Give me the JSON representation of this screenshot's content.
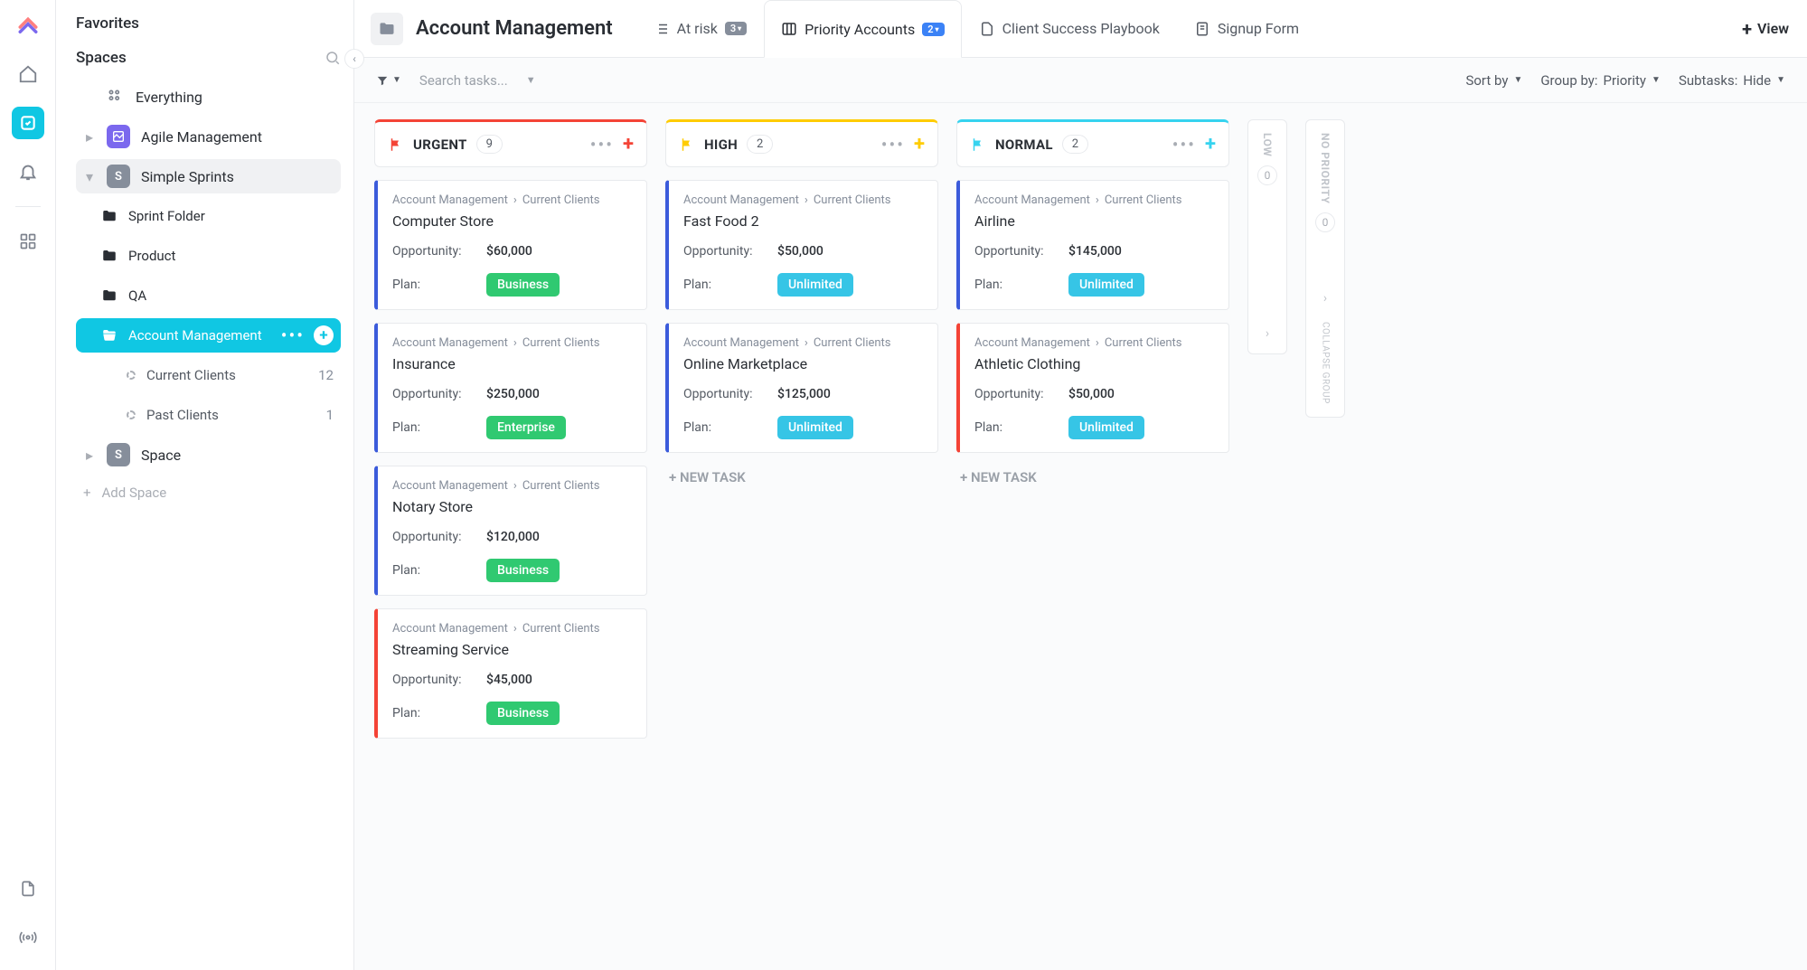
{
  "sidebar": {
    "favorites_label": "Favorites",
    "spaces_label": "Spaces",
    "everything_label": "Everything",
    "add_space_label": "Add Space",
    "items": [
      {
        "label": "Agile Management",
        "letter": ""
      },
      {
        "label": "Simple Sprints",
        "letter": "S"
      },
      {
        "label": "Sprint Folder"
      },
      {
        "label": "Product"
      },
      {
        "label": "QA"
      },
      {
        "label": "Account Management"
      },
      {
        "label": "Current Clients",
        "count": "12"
      },
      {
        "label": "Past Clients",
        "count": "1"
      },
      {
        "label": "Space",
        "letter": "S"
      }
    ]
  },
  "topbar": {
    "title": "Account Management",
    "tabs": [
      {
        "label": "At risk",
        "badge": "3"
      },
      {
        "label": "Priority Accounts",
        "badge": "2"
      },
      {
        "label": "Client Success Playbook"
      },
      {
        "label": "Signup Form"
      }
    ],
    "view_label": "View"
  },
  "toolbar": {
    "search_placeholder": "Search tasks...",
    "sort_label": "Sort by",
    "group_label": "Group by:",
    "group_value": "Priority",
    "subtasks_label": "Subtasks:",
    "subtasks_value": "Hide"
  },
  "colors": {
    "urgent": "#f44336",
    "high": "#ffcc00",
    "normal": "#36d3ef",
    "card_blue": "#3b5bdb",
    "card_red": "#f44336",
    "business": "#30c971",
    "enterprise": "#30c971",
    "unlimited": "#36c5e6"
  },
  "board": {
    "columns": [
      {
        "id": "urgent",
        "name": "URGENT",
        "count": "9",
        "accent": "#f44336",
        "flag": "#f44336",
        "plus": "#f44336",
        "cards": [
          {
            "border": "#3b5bdb",
            "crumb1": "Account Management",
            "crumb2": "Current Clients",
            "title": "Computer Store",
            "opp": "$60,000",
            "plan": "Business",
            "plan_bg": "#30c971"
          },
          {
            "border": "#3b5bdb",
            "crumb1": "Account Management",
            "crumb2": "Current Clients",
            "title": "Insurance",
            "opp": "$250,000",
            "plan": "Enterprise",
            "plan_bg": "#30c971"
          },
          {
            "border": "#3b5bdb",
            "crumb1": "Account Management",
            "crumb2": "Current Clients",
            "title": "Notary Store",
            "opp": "$120,000",
            "plan": "Business",
            "plan_bg": "#30c971"
          },
          {
            "border": "#f44336",
            "crumb1": "Account Management",
            "crumb2": "Current Clients",
            "title": "Streaming Service",
            "opp": "$45,000",
            "plan": "Business",
            "plan_bg": "#30c971"
          }
        ]
      },
      {
        "id": "high",
        "name": "HIGH",
        "count": "2",
        "accent": "#ffcc00",
        "flag": "#ffcc00",
        "plus": "#ffcc00",
        "cards": [
          {
            "border": "#3b5bdb",
            "crumb1": "Account Management",
            "crumb2": "Current Clients",
            "title": "Fast Food 2",
            "opp": "$50,000",
            "plan": "Unlimited",
            "plan_bg": "#36c5e6"
          },
          {
            "border": "#3b5bdb",
            "crumb1": "Account Management",
            "crumb2": "Current Clients",
            "title": "Online Marketplace",
            "opp": "$125,000",
            "plan": "Unlimited",
            "plan_bg": "#36c5e6"
          }
        ],
        "new_task": "+ NEW TASK"
      },
      {
        "id": "normal",
        "name": "NORMAL",
        "count": "2",
        "accent": "#36d3ef",
        "flag": "#36d3ef",
        "plus": "#36d3ef",
        "cards": [
          {
            "border": "#3b5bdb",
            "crumb1": "Account Management",
            "crumb2": "Current Clients",
            "title": "Airline",
            "opp": "$145,000",
            "plan": "Unlimited",
            "plan_bg": "#36c5e6"
          },
          {
            "border": "#f44336",
            "crumb1": "Account Management",
            "crumb2": "Current Clients",
            "title": "Athletic Clothing",
            "opp": "$50,000",
            "plan": "Unlimited",
            "plan_bg": "#36c5e6"
          }
        ],
        "new_task": "+ NEW TASK"
      }
    ],
    "collapsed": [
      {
        "label": "LOW",
        "count": "0"
      },
      {
        "label": "NO PRIORITY",
        "count": "0",
        "extra": "COLLAPSE GROUP"
      }
    ],
    "field_opp": "Opportunity:",
    "field_plan": "Plan:"
  }
}
